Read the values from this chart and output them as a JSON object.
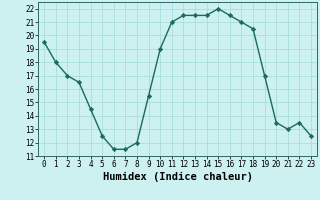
{
  "x": [
    0,
    1,
    2,
    3,
    4,
    5,
    6,
    7,
    8,
    9,
    10,
    11,
    12,
    13,
    14,
    15,
    16,
    17,
    18,
    19,
    20,
    21,
    22,
    23
  ],
  "y": [
    19.5,
    18.0,
    17.0,
    16.5,
    14.5,
    12.5,
    11.5,
    11.5,
    12.0,
    15.5,
    19.0,
    21.0,
    21.5,
    21.5,
    21.5,
    22.0,
    21.5,
    21.0,
    20.5,
    17.0,
    13.5,
    13.0,
    13.5,
    12.5
  ],
  "line_color": "#1a6b5a",
  "marker": "D",
  "markersize": 2.2,
  "linewidth": 1.0,
  "xlabel": "Humidex (Indice chaleur)",
  "xlabel_fontsize": 7.5,
  "xlim": [
    -0.5,
    23.5
  ],
  "ylim": [
    11,
    22.5
  ],
  "yticks": [
    11,
    12,
    13,
    14,
    15,
    16,
    17,
    18,
    19,
    20,
    21,
    22
  ],
  "xticks": [
    0,
    1,
    2,
    3,
    4,
    5,
    6,
    7,
    8,
    9,
    10,
    11,
    12,
    13,
    14,
    15,
    16,
    17,
    18,
    19,
    20,
    21,
    22,
    23
  ],
  "bg_color": "#cdf0f0",
  "grid_color": "#aadddd",
  "tick_fontsize": 5.5,
  "font_family": "monospace"
}
